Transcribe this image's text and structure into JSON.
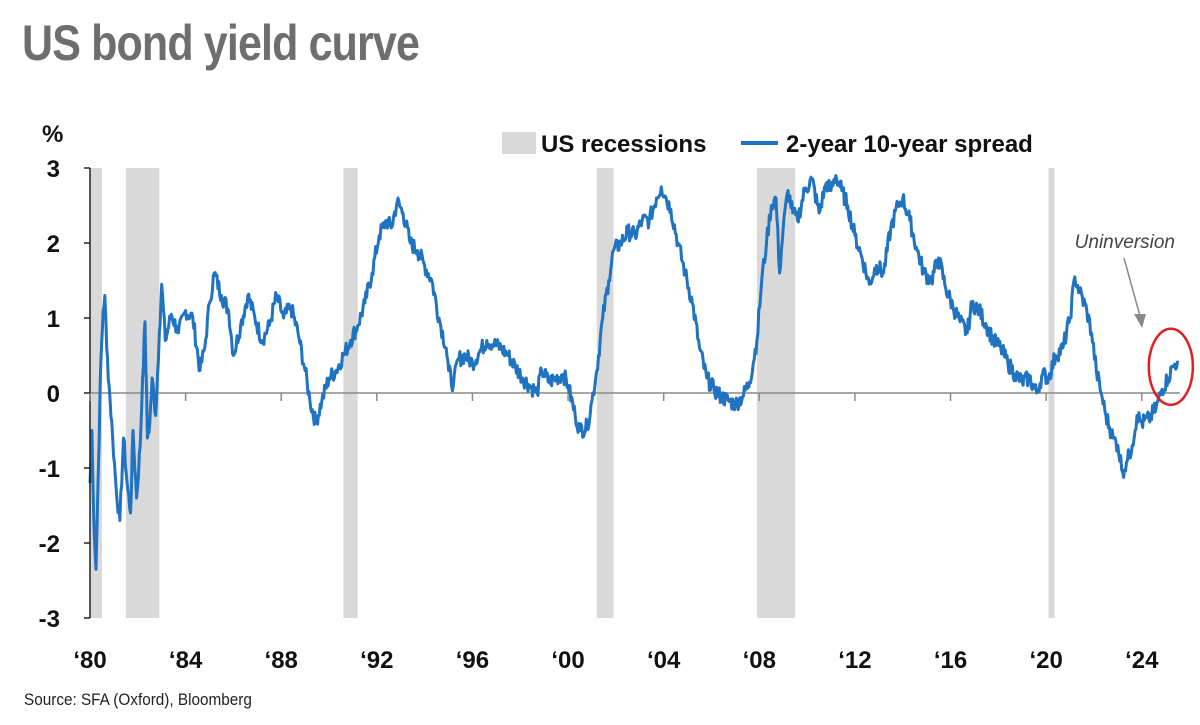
{
  "title": "US bond yield curve",
  "source": "Source: SFA (Oxford), Bloomberg",
  "chart_data": {
    "type": "line",
    "title": "US bond yield curve",
    "ylabel": "%",
    "xlabel": "",
    "ylim": [
      -3,
      3
    ],
    "xlim": [
      1980,
      2025.6
    ],
    "y_ticks": [
      3,
      2,
      1,
      0,
      -1,
      -2,
      -3
    ],
    "y_tick_labels": [
      "3",
      "2",
      "1",
      "0",
      "-1",
      "-2",
      "-3"
    ],
    "x_ticks": [
      1980,
      1984,
      1988,
      1992,
      1996,
      2000,
      2004,
      2008,
      2012,
      2016,
      2020,
      2024
    ],
    "x_tick_labels": [
      "‘80",
      "‘84",
      "‘88",
      "‘92",
      "‘96",
      "‘00",
      "‘04",
      "‘08",
      "‘12",
      "‘16",
      "‘20",
      "‘24"
    ],
    "legend": {
      "placement": "top-right",
      "entries": [
        "US recessions",
        "2-year 10-year spread"
      ]
    },
    "colors": {
      "series": "#1f73c1",
      "recession": "#d9d9d9",
      "highlight": "#e02020",
      "arrow": "#8a8a8a",
      "zero_line": "#8a8a8a"
    },
    "recessions": [
      [
        1980.0,
        1980.5
      ],
      [
        1981.5,
        1982.9
      ],
      [
        1990.6,
        1991.2
      ],
      [
        2001.2,
        2001.9
      ],
      [
        2007.9,
        2009.5
      ],
      [
        2020.1,
        2020.35
      ]
    ],
    "series": [
      {
        "name": "2-year 10-year spread",
        "points": [
          [
            1980.0,
            -1.2
          ],
          [
            1980.08,
            -0.5
          ],
          [
            1980.15,
            -1.6
          ],
          [
            1980.25,
            -2.35
          ],
          [
            1980.35,
            -1.0
          ],
          [
            1980.45,
            0.4
          ],
          [
            1980.55,
            1.1
          ],
          [
            1980.62,
            1.3
          ],
          [
            1980.7,
            0.6
          ],
          [
            1980.8,
            0.1
          ],
          [
            1980.95,
            -0.6
          ],
          [
            1981.1,
            -1.3
          ],
          [
            1981.25,
            -1.7
          ],
          [
            1981.4,
            -0.6
          ],
          [
            1981.55,
            -1.2
          ],
          [
            1981.7,
            -1.6
          ],
          [
            1981.8,
            -0.5
          ],
          [
            1981.95,
            -1.4
          ],
          [
            1982.1,
            -0.7
          ],
          [
            1982.2,
            0.2
          ],
          [
            1982.3,
            0.95
          ],
          [
            1982.4,
            -0.6
          ],
          [
            1982.5,
            -0.4
          ],
          [
            1982.6,
            0.2
          ],
          [
            1982.75,
            -0.3
          ],
          [
            1982.9,
            0.8
          ],
          [
            1983.0,
            1.45
          ],
          [
            1983.15,
            0.7
          ],
          [
            1983.4,
            1.05
          ],
          [
            1983.7,
            0.8
          ],
          [
            1984.0,
            1.1
          ],
          [
            1984.3,
            1.0
          ],
          [
            1984.6,
            0.3
          ],
          [
            1984.8,
            0.6
          ],
          [
            1985.0,
            1.2
          ],
          [
            1985.2,
            1.6
          ],
          [
            1985.5,
            1.3
          ],
          [
            1985.8,
            1.1
          ],
          [
            1986.0,
            0.5
          ],
          [
            1986.3,
            0.9
          ],
          [
            1986.6,
            1.3
          ],
          [
            1986.9,
            1.0
          ],
          [
            1987.2,
            0.7
          ],
          [
            1987.5,
            0.9
          ],
          [
            1987.8,
            1.3
          ],
          [
            1988.1,
            1.0
          ],
          [
            1988.4,
            1.15
          ],
          [
            1988.7,
            0.8
          ],
          [
            1989.0,
            0.3
          ],
          [
            1989.2,
            -0.1
          ],
          [
            1989.45,
            -0.4
          ],
          [
            1989.7,
            -0.1
          ],
          [
            1990.0,
            0.2
          ],
          [
            1990.3,
            0.3
          ],
          [
            1990.6,
            0.5
          ],
          [
            1990.9,
            0.7
          ],
          [
            1991.2,
            0.9
          ],
          [
            1991.5,
            1.2
          ],
          [
            1991.8,
            1.6
          ],
          [
            1992.1,
            2.1
          ],
          [
            1992.4,
            2.3
          ],
          [
            1992.6,
            2.2
          ],
          [
            1992.85,
            2.55
          ],
          [
            1993.1,
            2.4
          ],
          [
            1993.4,
            2.0
          ],
          [
            1993.7,
            1.9
          ],
          [
            1994.0,
            1.7
          ],
          [
            1994.3,
            1.5
          ],
          [
            1994.6,
            1.0
          ],
          [
            1994.9,
            0.6
          ],
          [
            1995.0,
            0.3
          ],
          [
            1995.2,
            0.1
          ],
          [
            1995.4,
            0.45
          ],
          [
            1995.7,
            0.5
          ],
          [
            1996.0,
            0.4
          ],
          [
            1996.3,
            0.55
          ],
          [
            1996.6,
            0.7
          ],
          [
            1996.9,
            0.65
          ],
          [
            1997.2,
            0.6
          ],
          [
            1997.5,
            0.5
          ],
          [
            1997.8,
            0.35
          ],
          [
            1998.1,
            0.2
          ],
          [
            1998.4,
            0.1
          ],
          [
            1998.7,
            0.0
          ],
          [
            1998.9,
            0.3
          ],
          [
            1999.2,
            0.15
          ],
          [
            1999.5,
            0.2
          ],
          [
            1999.8,
            0.25
          ],
          [
            2000.0,
            0.1
          ],
          [
            2000.3,
            -0.3
          ],
          [
            2000.5,
            -0.5
          ],
          [
            2000.8,
            -0.45
          ],
          [
            2001.0,
            -0.1
          ],
          [
            2001.2,
            0.3
          ],
          [
            2001.45,
            1.0
          ],
          [
            2001.7,
            1.5
          ],
          [
            2001.9,
            1.9
          ],
          [
            2002.2,
            2.0
          ],
          [
            2002.5,
            2.15
          ],
          [
            2002.8,
            2.1
          ],
          [
            2003.1,
            2.3
          ],
          [
            2003.4,
            2.3
          ],
          [
            2003.7,
            2.6
          ],
          [
            2003.9,
            2.75
          ],
          [
            2004.1,
            2.6
          ],
          [
            2004.3,
            2.45
          ],
          [
            2004.6,
            2.0
          ],
          [
            2004.9,
            1.6
          ],
          [
            2005.2,
            1.2
          ],
          [
            2005.5,
            0.6
          ],
          [
            2005.8,
            0.2
          ],
          [
            2006.1,
            0.05
          ],
          [
            2006.4,
            -0.05
          ],
          [
            2006.7,
            -0.1
          ],
          [
            2007.0,
            -0.15
          ],
          [
            2007.3,
            -0.05
          ],
          [
            2007.6,
            0.15
          ],
          [
            2007.9,
            0.7
          ],
          [
            2008.1,
            1.5
          ],
          [
            2008.3,
            2.0
          ],
          [
            2008.5,
            2.5
          ],
          [
            2008.7,
            2.6
          ],
          [
            2008.85,
            1.6
          ],
          [
            2009.0,
            2.2
          ],
          [
            2009.2,
            2.7
          ],
          [
            2009.4,
            2.4
          ],
          [
            2009.6,
            2.3
          ],
          [
            2009.9,
            2.7
          ],
          [
            2010.2,
            2.85
          ],
          [
            2010.5,
            2.4
          ],
          [
            2010.8,
            2.8
          ],
          [
            2011.0,
            2.7
          ],
          [
            2011.2,
            2.9
          ],
          [
            2011.45,
            2.7
          ],
          [
            2011.7,
            2.5
          ],
          [
            2012.0,
            2.1
          ],
          [
            2012.3,
            1.8
          ],
          [
            2012.6,
            1.45
          ],
          [
            2012.9,
            1.7
          ],
          [
            2013.2,
            1.6
          ],
          [
            2013.5,
            2.2
          ],
          [
            2013.8,
            2.5
          ],
          [
            2014.0,
            2.6
          ],
          [
            2014.3,
            2.3
          ],
          [
            2014.6,
            1.9
          ],
          [
            2014.9,
            1.6
          ],
          [
            2015.2,
            1.5
          ],
          [
            2015.5,
            1.8
          ],
          [
            2015.8,
            1.4
          ],
          [
            2016.1,
            1.15
          ],
          [
            2016.4,
            0.95
          ],
          [
            2016.7,
            0.8
          ],
          [
            2016.9,
            1.2
          ],
          [
            2017.2,
            1.1
          ],
          [
            2017.5,
            0.9
          ],
          [
            2017.8,
            0.7
          ],
          [
            2018.1,
            0.6
          ],
          [
            2018.4,
            0.4
          ],
          [
            2018.7,
            0.25
          ],
          [
            2019.0,
            0.15
          ],
          [
            2019.3,
            0.2
          ],
          [
            2019.6,
            0.0
          ],
          [
            2019.85,
            0.25
          ],
          [
            2020.1,
            0.2
          ],
          [
            2020.4,
            0.5
          ],
          [
            2020.7,
            0.6
          ],
          [
            2021.0,
            1.0
          ],
          [
            2021.2,
            1.55
          ],
          [
            2021.4,
            1.35
          ],
          [
            2021.7,
            1.1
          ],
          [
            2021.9,
            0.8
          ],
          [
            2022.1,
            0.3
          ],
          [
            2022.3,
            0.0
          ],
          [
            2022.5,
            -0.3
          ],
          [
            2022.8,
            -0.6
          ],
          [
            2023.0,
            -0.7
          ],
          [
            2023.2,
            -1.05
          ],
          [
            2023.4,
            -0.9
          ],
          [
            2023.6,
            -0.7
          ],
          [
            2023.8,
            -0.3
          ],
          [
            2024.0,
            -0.4
          ],
          [
            2024.3,
            -0.35
          ],
          [
            2024.6,
            -0.2
          ],
          [
            2024.85,
            0.05
          ],
          [
            2025.1,
            0.2
          ],
          [
            2025.3,
            0.35
          ],
          [
            2025.5,
            0.43
          ]
        ]
      }
    ],
    "annotations": [
      {
        "text": "Uninversion",
        "target": [
          2025.3,
          0.35
        ]
      }
    ]
  }
}
